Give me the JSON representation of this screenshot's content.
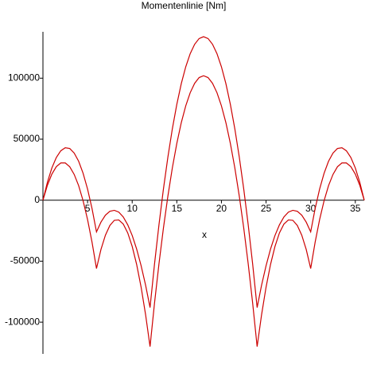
{
  "chart_data": {
    "type": "line",
    "title": "Momentenlinie [Nm]",
    "x_label": "x",
    "x": [
      0,
      0.5,
      1,
      1.5,
      2,
      2.5,
      3,
      3.5,
      4,
      4.5,
      5,
      5.5,
      6,
      6.5,
      7,
      7.5,
      8,
      8.5,
      9,
      9.5,
      10,
      10.5,
      11,
      11.5,
      12,
      12.5,
      13,
      13.5,
      14,
      14.5,
      15,
      15.5,
      16,
      16.5,
      17,
      17.5,
      18,
      18.5,
      19,
      19.5,
      20,
      20.5,
      21,
      21.5,
      22,
      22.5,
      23,
      23.5,
      24,
      24.5,
      25,
      25.5,
      26,
      26.5,
      27,
      27.5,
      28,
      28.5,
      29,
      29.5,
      30,
      30.5,
      31,
      31.5,
      32,
      32.5,
      33,
      33.5,
      34,
      34.5,
      35,
      35.5,
      36
    ],
    "series": [
      {
        "color": "#cc0000",
        "values": [
          0,
          14700,
          26400,
          35000,
          40500,
          43000,
          42400,
          38600,
          31900,
          22000,
          9100,
          -6900,
          -26000,
          -18000,
          -12300,
          -9100,
          -8300,
          -9800,
          -13800,
          -20200,
          -28900,
          -40100,
          -53700,
          -69600,
          -88000,
          -52500,
          -20200,
          9100,
          35300,
          58500,
          78500,
          95500,
          109300,
          120100,
          127800,
          132500,
          134000,
          132500,
          127800,
          120100,
          109300,
          95500,
          78500,
          58500,
          35300,
          9100,
          -20200,
          -52500,
          -88000,
          -69600,
          -53700,
          -40100,
          -28900,
          -20200,
          -13800,
          -9800,
          -8300,
          -9100,
          -12300,
          -18000,
          -26000,
          -6900,
          9100,
          22000,
          31900,
          38600,
          42400,
          43000,
          40500,
          35000,
          26400,
          14700,
          0
        ]
      },
      {
        "color": "#cc0000",
        "values": [
          0,
          12200,
          21400,
          27500,
          30500,
          30500,
          27400,
          21100,
          11900,
          -500,
          -15900,
          -34400,
          -56000,
          -40400,
          -28700,
          -20700,
          -16500,
          -16200,
          -19600,
          -26800,
          -37900,
          -52700,
          -71300,
          -93800,
          -120000,
          -84500,
          -52200,
          -22900,
          3300,
          26500,
          46500,
          63500,
          77300,
          88100,
          95800,
          100500,
          102000,
          100500,
          95800,
          88100,
          77300,
          63500,
          46500,
          26500,
          3300,
          -22900,
          -52200,
          -84500,
          -120000,
          -93800,
          -71300,
          -52700,
          -37900,
          -26800,
          -19600,
          -16200,
          -16500,
          -20700,
          -28700,
          -40400,
          -56000,
          -34400,
          -15900,
          -500,
          11900,
          21100,
          27400,
          30500,
          30500,
          27500,
          21400,
          12200,
          0
        ]
      }
    ],
    "xlim": [
      0,
      36
    ],
    "ylim": [
      -126000,
      138000
    ],
    "xticks": [
      5,
      10,
      15,
      20,
      25,
      30,
      35
    ],
    "yticks": [
      -100000,
      -50000,
      0,
      50000,
      100000
    ],
    "grid": false
  }
}
